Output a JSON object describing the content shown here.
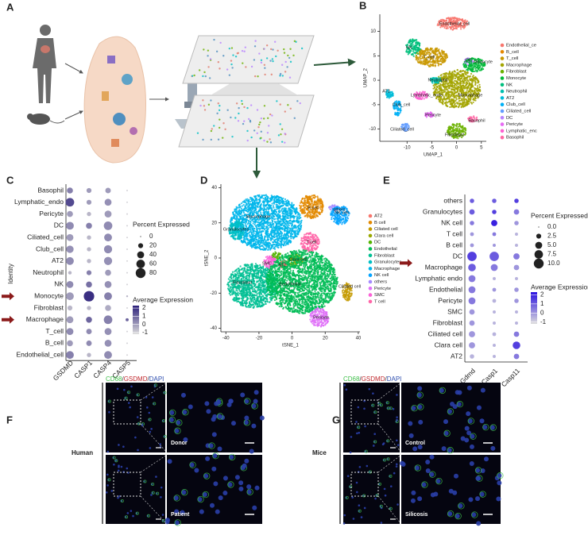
{
  "panel_a": {
    "label": "A"
  },
  "panel_b": {
    "label": "B",
    "type": "scatter",
    "xlabel": "UMAP_1",
    "ylabel": "UMAP_2",
    "xlim": [
      -15.5,
      6
    ],
    "ylim": [
      -12.5,
      13.5
    ],
    "xticks": [
      -10,
      -5,
      0,
      5
    ],
    "yticks": [
      10,
      5,
      0,
      -5,
      -10
    ],
    "legend": [
      {
        "name": "Endothelial_ce",
        "color": "#f8766d"
      },
      {
        "name": "B_cell",
        "color": "#e58700"
      },
      {
        "name": "T_cell",
        "color": "#c99800"
      },
      {
        "name": "Macrophage",
        "color": "#a3a500"
      },
      {
        "name": "Fibroblast",
        "color": "#6bb100"
      },
      {
        "name": "Monocyte",
        "color": "#00ba38"
      },
      {
        "name": "NK",
        "color": "#00bf7d"
      },
      {
        "name": "Neutrophil",
        "color": "#00c0af"
      },
      {
        "name": "AT2",
        "color": "#00bcd8"
      },
      {
        "name": "Club_cell",
        "color": "#00b0f6"
      },
      {
        "name": "Ciliated_cell",
        "color": "#619cff"
      },
      {
        "name": "DC",
        "color": "#b983ff"
      },
      {
        "name": "Pericyte",
        "color": "#e76bf3"
      },
      {
        "name": "Lymphatic_enc",
        "color": "#fd61d1"
      },
      {
        "name": "Basophil",
        "color": "#ff67a4"
      }
    ],
    "cluster_labels": [
      "Endothelial_cell",
      "NK",
      "T_cell",
      "DC",
      "Monocyte",
      "Neutrophil",
      "Lymphatic_endo",
      "Macrophage",
      "AT2",
      "Club_cell",
      "Pericyte",
      "Basophil",
      "Ciliated_cell",
      "Fibroblast"
    ]
  },
  "panel_c": {
    "label": "C",
    "type": "dotplot",
    "ylabel": "Identity",
    "rows": [
      "Basophil",
      "Lymphatic_endo",
      "Pericyte",
      "DC",
      "Ciliated_cell",
      "Club_cell",
      "AT2",
      "Neutrophil",
      "NK",
      "Monocyte",
      "Fibroblast",
      "Macrophage",
      "T_cell",
      "B_cell",
      "Endothelial_cell"
    ],
    "columns": [
      "GSDMD",
      "CASP1",
      "CASP4",
      "CASP5"
    ],
    "percent": [
      [
        30,
        20,
        25,
        2
      ],
      [
        60,
        20,
        40,
        2
      ],
      [
        30,
        15,
        40,
        2
      ],
      [
        50,
        30,
        60,
        2
      ],
      [
        40,
        15,
        50,
        2
      ],
      [
        45,
        15,
        55,
        2
      ],
      [
        50,
        15,
        55,
        2
      ],
      [
        10,
        20,
        30,
        2
      ],
      [
        40,
        30,
        40,
        2
      ],
      [
        50,
        90,
        50,
        3
      ],
      [
        20,
        15,
        30,
        2
      ],
      [
        40,
        30,
        60,
        8
      ],
      [
        40,
        25,
        40,
        2
      ],
      [
        30,
        25,
        40,
        2
      ],
      [
        50,
        15,
        50,
        2
      ]
    ],
    "average": [
      [
        0.5,
        0,
        0,
        -1
      ],
      [
        1.5,
        0,
        0.2,
        -1
      ],
      [
        0,
        -0.5,
        0,
        -1
      ],
      [
        0.3,
        0.5,
        0.3,
        -1
      ],
      [
        0,
        -0.5,
        0.3,
        -1
      ],
      [
        0.2,
        -0.5,
        0.3,
        -1
      ],
      [
        0.3,
        -0.5,
        0.2,
        -1
      ],
      [
        -0.5,
        0.5,
        0,
        -1
      ],
      [
        0.3,
        0.8,
        0.2,
        -1
      ],
      [
        0,
        2,
        0.5,
        -0.5
      ],
      [
        -0.5,
        -0.5,
        -0.3,
        -1
      ],
      [
        0,
        1,
        0.5,
        1
      ],
      [
        0.3,
        0.3,
        0.2,
        -1
      ],
      [
        0,
        0.3,
        0.2,
        -1
      ],
      [
        0.5,
        -0.5,
        0.3,
        -1
      ]
    ],
    "size_title": "Percent Expressed",
    "size_ticks": [
      0,
      20,
      40,
      60,
      80
    ],
    "color_title": "Average Expression",
    "color_ticks": [
      2,
      1,
      0,
      -1
    ],
    "color_lim": [
      -1.2,
      2.3
    ],
    "colors": [
      "#dcdcdc",
      "#2b1f7a"
    ]
  },
  "panel_d": {
    "label": "D",
    "type": "scatter",
    "xlabel": "tSNE_1",
    "ylabel": "tSNE_2",
    "xlim": [
      -43,
      41
    ],
    "ylim": [
      -42,
      42
    ],
    "xticks": [
      -40,
      -20,
      0,
      20,
      40
    ],
    "yticks": [
      40,
      20,
      0,
      -20,
      -40
    ],
    "legend": [
      {
        "name": "AT2",
        "color": "#f8766d"
      },
      {
        "name": "B cell",
        "color": "#e38900"
      },
      {
        "name": "Ciliated cell",
        "color": "#c49a00"
      },
      {
        "name": "Clara cell",
        "color": "#99a800"
      },
      {
        "name": "DC",
        "color": "#53b400"
      },
      {
        "name": "Endothelial",
        "color": "#00bc56"
      },
      {
        "name": "Fibroblast",
        "color": "#00c094"
      },
      {
        "name": "Granulocytes",
        "color": "#00bfc4"
      },
      {
        "name": "Macrophage",
        "color": "#00b6eb"
      },
      {
        "name": "NK cell",
        "color": "#06a4ff"
      },
      {
        "name": "others",
        "color": "#a58aff"
      },
      {
        "name": "Pericyte",
        "color": "#df70f8"
      },
      {
        "name": "SMC",
        "color": "#fb61d7"
      },
      {
        "name": "T cell",
        "color": "#ff66a8"
      }
    ],
    "cluster_labels": [
      "Macrophage",
      "B cell",
      "others",
      "NK cell",
      "T cell",
      "Granulocytes",
      "AT2",
      "Clara cell",
      "Fibroblast",
      "SMC",
      "Endothelial",
      "Ciliated cell",
      "Pericyte"
    ]
  },
  "panel_e": {
    "label": "E",
    "type": "dotplot",
    "rows": [
      "others",
      "Granulocytes",
      "NK cell",
      "T cell",
      "B cell",
      "DC",
      "Macrophage",
      "Lymphatic endo",
      "Endothelial",
      "Pericyte",
      "SMC",
      "Fibroblast",
      "Ciliated cell",
      "Clara cell",
      "AT2"
    ],
    "columns": [
      "Gdmd",
      "Casp1",
      "Casp11"
    ],
    "percent": [
      [
        2,
        2,
        2
      ],
      [
        3,
        2,
        3
      ],
      [
        2,
        4,
        2
      ],
      [
        1.5,
        1.5,
        1
      ],
      [
        1.5,
        1,
        1
      ],
      [
        9,
        9,
        4
      ],
      [
        6,
        5,
        3
      ],
      [
        5,
        1,
        1
      ],
      [
        5,
        1.5,
        2
      ],
      [
        5,
        1.5,
        2
      ],
      [
        3,
        1,
        1
      ],
      [
        3,
        1,
        1
      ],
      [
        4,
        1.5,
        3
      ],
      [
        4,
        1,
        6
      ],
      [
        2,
        1,
        3
      ]
    ],
    "average": [
      [
        1,
        1,
        1.5
      ],
      [
        1,
        1.5,
        0.5
      ],
      [
        0.5,
        2,
        0
      ],
      [
        0,
        0.5,
        -0.5
      ],
      [
        0,
        0,
        -0.5
      ],
      [
        1.5,
        1,
        0.5
      ],
      [
        1,
        0.5,
        0
      ],
      [
        0.5,
        -0.5,
        -0.5
      ],
      [
        0.5,
        0,
        0
      ],
      [
        0.5,
        -0.5,
        0
      ],
      [
        0,
        -0.5,
        -0.5
      ],
      [
        0,
        -0.5,
        -0.5
      ],
      [
        0,
        -0.5,
        0.5
      ],
      [
        0,
        -0.5,
        1.5
      ],
      [
        -0.5,
        -0.5,
        0.5
      ]
    ],
    "size_title": "Percent Expressed",
    "size_ticks": [
      {
        "value": 0,
        "label": "0.0"
      },
      2.5,
      {
        "value": 5,
        "label": "5.0"
      },
      7.5,
      {
        "value": 10,
        "label": "10.0"
      }
    ],
    "color_title": "Average Expression",
    "color_ticks": [
      2,
      1,
      0,
      -1
    ],
    "color_lim": [
      -1.2,
      2.3
    ],
    "colors": [
      "#dcdcdc",
      "#2a10e0"
    ]
  },
  "panel_f": {
    "label": "F",
    "stain": [
      {
        "text": "CD68",
        "color": "#3fbf4a"
      },
      {
        "text": "/",
        "color": "#333333"
      },
      {
        "text": "GSDMD",
        "color": "#c0282d"
      },
      {
        "text": "/",
        "color": "#333333"
      },
      {
        "text": "DAPI",
        "color": "#2f4fb0"
      }
    ],
    "group": "Human",
    "top": "Donor",
    "bottom": "Patient"
  },
  "panel_g": {
    "label": "G",
    "stain": [
      {
        "text": "CD68",
        "color": "#3fbf4a"
      },
      {
        "text": "/",
        "color": "#333333"
      },
      {
        "text": "GSDMD",
        "color": "#c0282d"
      },
      {
        "text": "/",
        "color": "#333333"
      },
      {
        "text": "DAPI",
        "color": "#2f4fb0"
      }
    ],
    "group": "Mice",
    "top": "Control",
    "bottom": "Silicosis"
  }
}
